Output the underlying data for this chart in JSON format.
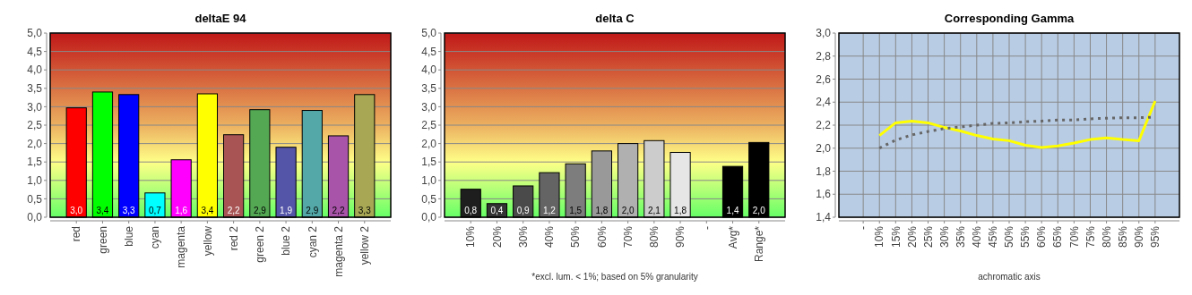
{
  "chart_data": [
    {
      "type": "bar",
      "title": "deltaE 94",
      "categories": [
        "red",
        "green",
        "blue",
        "cyan",
        "magenta",
        "yellow",
        "red 2",
        "green 2",
        "blue 2",
        "cyan 2",
        "magenta 2",
        "yellow 2"
      ],
      "values": [
        2.97,
        3.4,
        3.33,
        0.66,
        1.56,
        3.35,
        2.24,
        2.92,
        1.9,
        2.9,
        2.21,
        3.33
      ],
      "colors": [
        "#ff0000",
        "#00ff00",
        "#0000ff",
        "#00ffff",
        "#ff00ff",
        "#ffff00",
        "#a85454",
        "#54a854",
        "#5454a8",
        "#54a8a8",
        "#a854a8",
        "#a8a854"
      ],
      "value_labels": [
        "3,0",
        "3,4",
        "3,3",
        "0,7",
        "1,6",
        "3,4",
        "2,2",
        "2,9",
        "1,9",
        "2,9",
        "2,2",
        "3,3"
      ],
      "ylim": [
        0,
        5
      ],
      "yticks": [
        {
          "value": 0,
          "label": "0,0"
        },
        {
          "value": 0.5,
          "label": "0,5"
        },
        {
          "value": 1,
          "label": "1,0"
        },
        {
          "value": 1.5,
          "label": "1,5"
        },
        {
          "value": 2,
          "label": "2,0"
        },
        {
          "value": 2.5,
          "label": "2,5"
        },
        {
          "value": 3,
          "label": "3,0"
        },
        {
          "value": 3.5,
          "label": "3,5"
        },
        {
          "value": 4,
          "label": "4,0"
        },
        {
          "value": 4.5,
          "label": "4,5"
        },
        {
          "value": 5,
          "label": "5,0"
        }
      ],
      "grid": "y"
    },
    {
      "type": "bar",
      "title": "delta C",
      "categories": [
        "10%",
        "20%",
        "30%",
        "40%",
        "50%",
        "60%",
        "70%",
        "80%",
        "90%",
        "-",
        "Avg*",
        "Range*"
      ],
      "values": [
        0.76,
        0.37,
        0.85,
        1.21,
        1.45,
        1.8,
        2.0,
        2.08,
        1.76,
        null,
        1.38,
        2.03
      ],
      "colors": [
        "#1e1e1e",
        "#333333",
        "#4a4a4a",
        "#646464",
        "#7d7d7d",
        "#999999",
        "#b0b0b0",
        "#cccccc",
        "#e6e6e6",
        null,
        "#000000",
        "#000000"
      ],
      "value_labels": [
        "0,8",
        "0,4",
        "0,9",
        "1,2",
        "1,5",
        "1,8",
        "2,0",
        "2,1",
        "1,8",
        null,
        "1,4",
        "2,0"
      ],
      "ylim": [
        0,
        5
      ],
      "yticks": [
        {
          "value": 0,
          "label": "0,0"
        },
        {
          "value": 0.5,
          "label": "0,5"
        },
        {
          "value": 1,
          "label": "1,0"
        },
        {
          "value": 1.5,
          "label": "1,5"
        },
        {
          "value": 2,
          "label": "2,0"
        },
        {
          "value": 2.5,
          "label": "2,5"
        },
        {
          "value": 3,
          "label": "3,0"
        },
        {
          "value": 3.5,
          "label": "3,5"
        },
        {
          "value": 4,
          "label": "4,0"
        },
        {
          "value": 4.5,
          "label": "4,5"
        },
        {
          "value": 5,
          "label": "5,0"
        }
      ],
      "grid": "y",
      "annotations": [
        "*excl. lum. < 1%; based on 5% granularity"
      ]
    },
    {
      "type": "line",
      "title": "Corresponding Gamma",
      "xlabel": "achromatic axis",
      "categories": [
        "-",
        "10%",
        "15%",
        "20%",
        "25%",
        "30%",
        "35%",
        "40%",
        "45%",
        "50%",
        "55%",
        "60%",
        "65%",
        "70%",
        "75%",
        "80%",
        "85%",
        "90%",
        "95%"
      ],
      "series": [
        {
          "color": "#ffff00",
          "line_style": "solid",
          "values": [
            null,
            2.11,
            2.22,
            2.235,
            2.22,
            2.18,
            2.15,
            2.11,
            2.08,
            2.065,
            2.025,
            2.005,
            2.02,
            2.045,
            2.075,
            2.09,
            2.075,
            2.065,
            2.41
          ]
        },
        {
          "color": "#666666",
          "line_style": "dotted",
          "values": [
            null,
            2.0,
            2.07,
            2.115,
            2.145,
            2.17,
            2.185,
            2.2,
            2.215,
            2.22,
            2.23,
            2.235,
            2.245,
            2.245,
            2.255,
            2.26,
            2.265,
            2.265,
            2.27
          ]
        }
      ],
      "ylim": [
        1.4,
        3.0
      ],
      "yticks": [
        {
          "value": 1.4,
          "label": "1,4"
        },
        {
          "value": 1.6,
          "label": "1,6"
        },
        {
          "value": 1.8,
          "label": "1,8"
        },
        {
          "value": 2.0,
          "label": "2,0"
        },
        {
          "value": 2.2,
          "label": "2,2"
        },
        {
          "value": 2.4,
          "label": "2,4"
        },
        {
          "value": 2.6,
          "label": "2,6"
        },
        {
          "value": 2.8,
          "label": "2,8"
        },
        {
          "value": 3.0,
          "label": "3,0"
        }
      ],
      "grid": true
    }
  ]
}
